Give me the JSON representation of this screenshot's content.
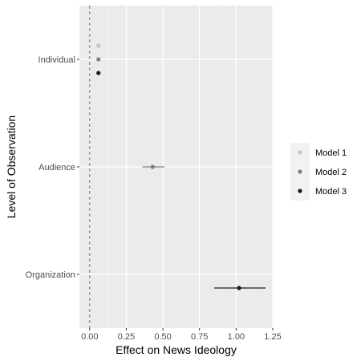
{
  "chart_data": {
    "type": "dot-and-whisker",
    "xlabel": "Effect on News Ideology",
    "ylabel": "Level of Observation",
    "xlim": [
      -0.07,
      1.25
    ],
    "x_ticks": [
      0.0,
      0.25,
      0.5,
      0.75,
      1.0,
      1.25
    ],
    "x_tick_labels": [
      "0.00",
      "0.25",
      "0.50",
      "0.75",
      "1.00",
      "1.25"
    ],
    "categories": [
      "Individual",
      "Audience",
      "Organization"
    ],
    "reference_line": {
      "x": 0,
      "style": "dashed"
    },
    "grid": true,
    "legend_position": "right",
    "series": [
      {
        "name": "Model 1",
        "color": "#c6c6c6",
        "points": [
          {
            "category": "Individual",
            "estimate": 0.06,
            "ci_low": 0.05,
            "ci_high": 0.07
          }
        ]
      },
      {
        "name": "Model 2",
        "color": "#7f7f7f",
        "points": [
          {
            "category": "Individual",
            "estimate": 0.06,
            "ci_low": 0.05,
            "ci_high": 0.07
          },
          {
            "category": "Audience",
            "estimate": 0.43,
            "ci_low": 0.36,
            "ci_high": 0.51
          }
        ]
      },
      {
        "name": "Model 3",
        "color": "#1a1a1a",
        "points": [
          {
            "category": "Individual",
            "estimate": 0.06,
            "ci_low": 0.05,
            "ci_high": 0.07
          },
          {
            "category": "Organization",
            "estimate": 1.02,
            "ci_low": 0.85,
            "ci_high": 1.2
          }
        ]
      }
    ]
  }
}
